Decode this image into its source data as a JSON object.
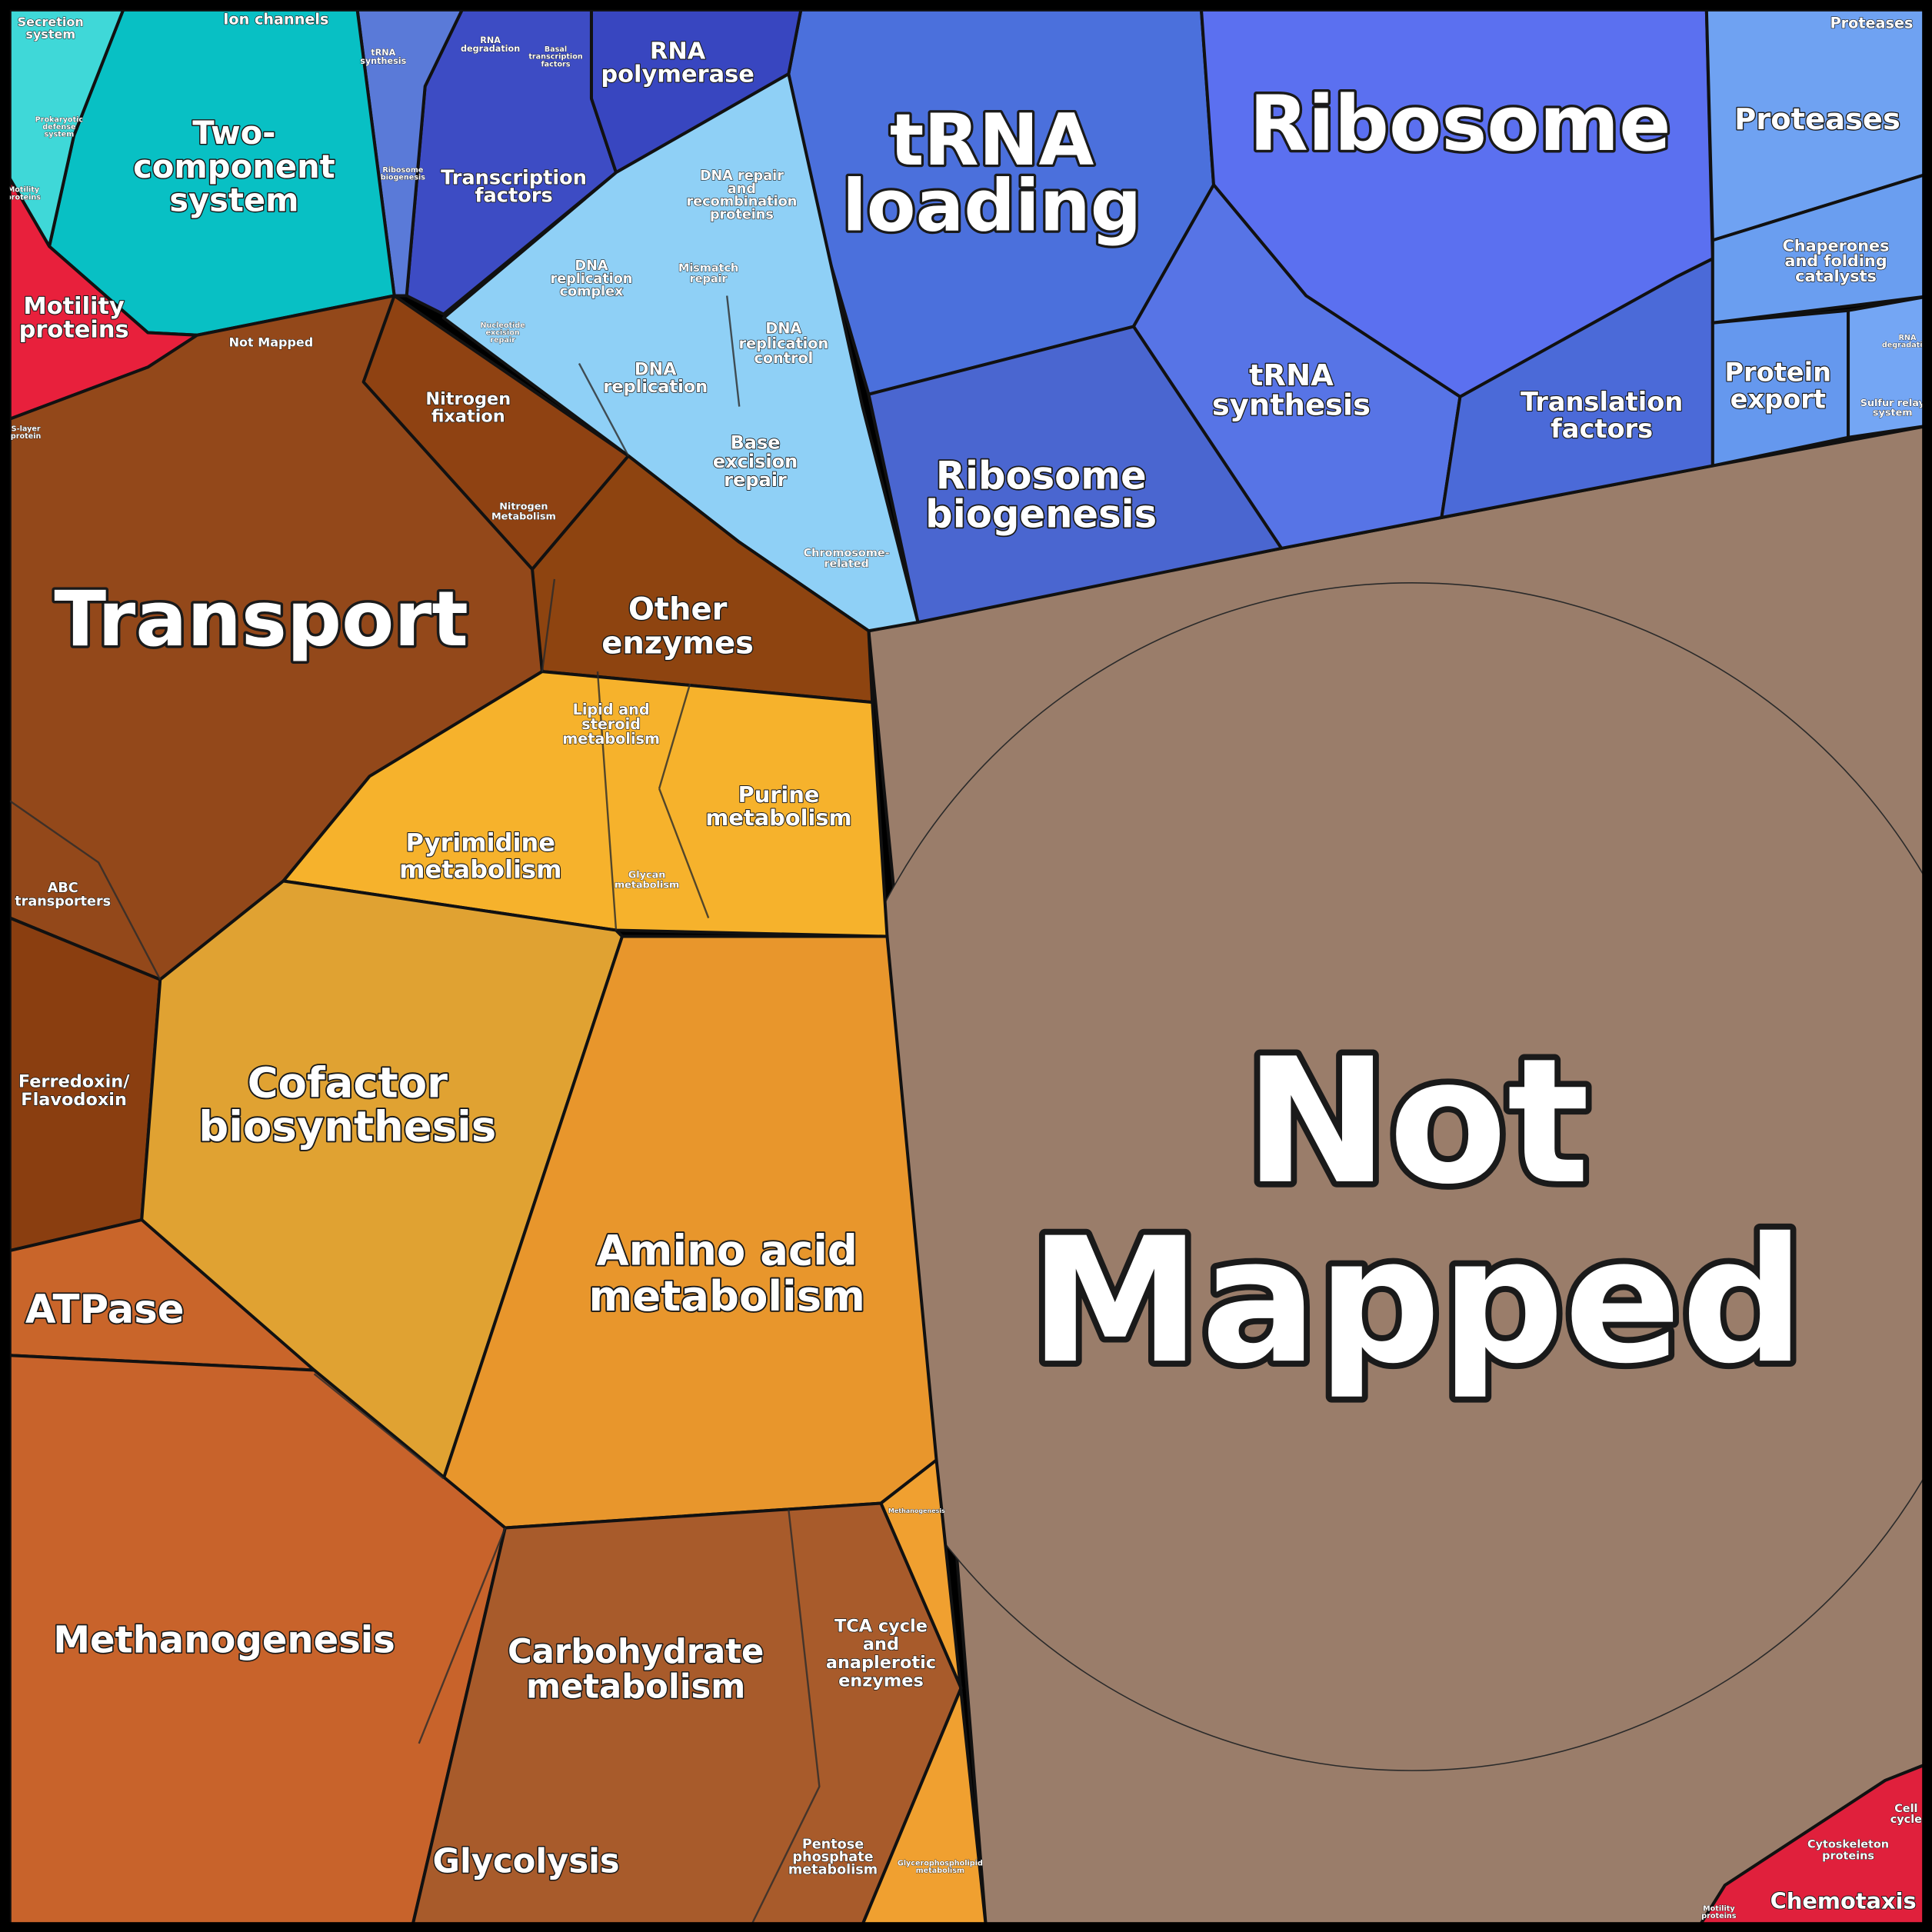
{
  "labels": [
    "Not\nMapped",
    "Ribosome",
    "tRNA\nloading",
    "Transport",
    "Proteases",
    "RNA\npolymerase",
    "Two-\ncomponent\nsystem",
    "Motility\nproteins",
    "Transcription\nfactors",
    "tRNA\nsynthesis",
    "Translation\nfactors",
    "Ribosome\nbiogenesis",
    "Chaperones\nand folding\ncatalysts",
    "Protein\nexport",
    "Nitrogen\nfixation",
    "Other\nenzymes",
    "DNA repair\nand\nrecombination\nproteins",
    "DNA\nreplication\ncomplex",
    "Mismatch\nrepair",
    "DNA\nreplication\ncontrol",
    "DNA\nreplication",
    "Base\nexcision\nrepair",
    "Chromosome-\nrelated",
    "Lipid and\nsteroid\nmetabolism",
    "Purine\nmetabolism",
    "Pyrimidine\nmetabolism",
    "Glycan\nmetabolism",
    "Cofactor\nbiosynthesis",
    "Amino acid\nmetabolism",
    "ATPase",
    "Methanogenesis",
    "Carbohydrate\nmetabolism",
    "TCA cycle\nand\nanaplerotic\nenzymes",
    "Glycolysis",
    "Pentose\nphosphate\nmetabolism",
    "Ferredoxin/\nFlavodoxin",
    "ABC\ntransporters",
    "Chemotaxis",
    "Cytoskeleton\nproteins",
    "Cell\ncycle",
    "Ion channels",
    "Secretion\nsystem",
    "Prokaryotic\ndefense\nsystem",
    "Not Mapped",
    "Nitrogen\nMetabolism",
    "Methanogenesis",
    "Glycerophospholipid\nmetabolism",
    "RNA\ndegradation",
    "Basal\ntranscription\nfactors",
    "tRNA\nsynthesis",
    "Ribosome\nbiogenesis",
    "S-layer\nprotein",
    "Sulfur relay\nsystem",
    "RNA\ndegradation",
    "Nucleotide\nexcision\nrepair",
    "Proteases",
    "Motility\nproteins",
    "Motility\nproteins"
  ]
}
